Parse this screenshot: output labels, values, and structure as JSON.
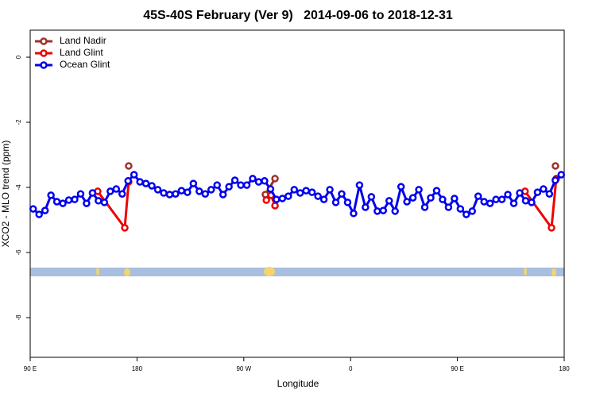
{
  "chart_data": {
    "type": "line",
    "title": "45S-40S February (Ver 9)   2014-09-06 to 2018-12-31",
    "x_label": "Longitude",
    "y_label": "XCO2 - MLO trend (ppm)",
    "xlim": [
      90,
      540
    ],
    "ylim": [
      -9.22,
      0.83
    ],
    "xticks": [
      {
        "value": 90,
        "label": "90 E"
      },
      {
        "value": 180,
        "label": "180"
      },
      {
        "value": 270,
        "label": "90 W"
      },
      {
        "value": 360,
        "label": "0"
      },
      {
        "value": 450,
        "label": "90 E"
      },
      {
        "value": 540,
        "label": "180"
      }
    ],
    "yticks": [
      0,
      -2,
      -4,
      -6,
      -8
    ],
    "legend": "top-left",
    "series": [
      {
        "name": "Land Nadir",
        "color": "#a0302a",
        "x": [
          173,
          null,
          288.2,
          296.3,
          null,
          532.6
        ],
        "values": [
          -3.34,
          null,
          -4.22,
          -3.73,
          null,
          -3.34
        ]
      },
      {
        "name": "Land Glint",
        "color": "#ee0000",
        "x": [
          146.9,
          169.7,
          173,
          null,
          289,
          293,
          296.3,
          null,
          507,
          529.3,
          533.3
        ],
        "values": [
          -4.12,
          -5.24,
          -3.83,
          null,
          -4.39,
          -4.24,
          -4.56,
          null,
          -4.12,
          -5.24,
          -3.73
        ]
      },
      {
        "name": "Ocean Glint",
        "color": "#0000ee",
        "x": [
          92.5,
          97.5,
          102.5,
          107.5,
          112.5,
          117.5,
          122.5,
          127.5,
          132.5,
          137.5,
          142.5,
          147.5,
          152.5,
          157.5,
          162.5,
          167.5,
          172.5,
          177.5,
          182.5,
          187.5,
          192.5,
          197.5,
          202.5,
          207.5,
          212.5,
          217.5,
          222.5,
          227.5,
          232.5,
          237.5,
          242.5,
          247.5,
          252.5,
          257.5,
          262.5,
          267.5,
          272.5,
          277.5,
          282.5,
          287.5,
          292.5,
          297.5,
          302.5,
          307.5,
          312.5,
          317.5,
          322.5,
          327.5,
          332.5,
          337.5,
          342.5,
          347.5,
          352.5,
          357.5,
          362.5,
          367.5,
          372.5,
          377.5,
          382.5,
          387.5,
          392.5,
          397.5,
          402.5,
          407.5,
          412.5,
          417.5,
          422.5,
          427.5,
          432.5,
          437.5,
          442.5,
          447.5,
          452.5,
          457.5,
          462.5,
          467.5,
          472.5,
          477.5,
          482.5,
          487.5,
          492.5,
          497.5,
          502.5,
          507.5,
          512.5,
          517.5,
          522.5,
          527.5,
          532.5,
          537.5
        ],
        "values": [
          -4.66,
          -4.83,
          -4.71,
          -4.24,
          -4.44,
          -4.49,
          -4.39,
          -4.37,
          -4.2,
          -4.49,
          -4.17,
          -4.41,
          -4.46,
          -4.12,
          -4.05,
          -4.2,
          -3.8,
          -3.61,
          -3.83,
          -3.88,
          -3.95,
          -4.07,
          -4.17,
          -4.22,
          -4.2,
          -4.1,
          -4.15,
          -3.88,
          -4.12,
          -4.2,
          -4.07,
          -3.93,
          -4.22,
          -3.98,
          -3.78,
          -3.93,
          -3.93,
          -3.73,
          -3.83,
          -3.8,
          -4.05,
          -4.37,
          -4.34,
          -4.27,
          -4.07,
          -4.17,
          -4.1,
          -4.15,
          -4.27,
          -4.37,
          -4.07,
          -4.46,
          -4.2,
          -4.46,
          -4.8,
          -3.93,
          -4.61,
          -4.29,
          -4.73,
          -4.71,
          -4.41,
          -4.73,
          -3.98,
          -4.44,
          -4.32,
          -4.07,
          -4.61,
          -4.32,
          -4.1,
          -4.37,
          -4.61,
          -4.34,
          -4.66,
          -4.83,
          -4.73,
          -4.27,
          -4.44,
          -4.49,
          -4.37,
          -4.37,
          -4.22,
          -4.49,
          -4.17,
          -4.41,
          -4.46,
          -4.15,
          -4.05,
          -4.2,
          -3.78,
          -3.61
        ]
      }
    ]
  }
}
